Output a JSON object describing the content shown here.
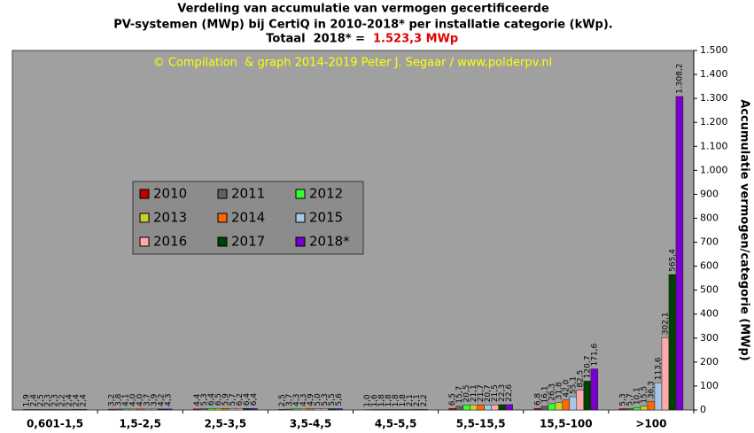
{
  "chart_data": {
    "type": "bar",
    "title": "Verdeling van accumulatie van vermogen gecertificeerde",
    "subtitle": "PV-systemen (MWp) bij CertiQ in 2010-2018* per installatie categorie (kWp).",
    "total_label": "Totaal  2018* =",
    "total_value": "1.523,3 MWp",
    "annotation": "© Compilation  & graph 2014-2019 Peter J. Segaar / www.polderpv.nl",
    "y_label": "Accumulatie vermogen/categorie (MWp)",
    "categories": [
      "0,601-1,5",
      "1,5-2,5",
      "2,5-3,5",
      "3,5-4,5",
      "4,5-5,5",
      "5,5-15,5",
      "15,5-100",
      ">100"
    ],
    "series": [
      {
        "name": "2010",
        "color": "#c00000",
        "values": [
          1.9,
          3.2,
          4.4,
          2.5,
          1.0,
          6.5,
          6.8,
          5.3
        ],
        "value_labels": [
          "1,9",
          "3,2",
          "4,4",
          "2,5",
          "1,0",
          "6,5",
          "6,8",
          "5,3"
        ]
      },
      {
        "name": "2011",
        "color": "#606060",
        "values": [
          2.4,
          3.8,
          5.3,
          3.7,
          1.6,
          15.7,
          16.1,
          5.7
        ],
        "value_labels": [
          "2,4",
          "3,8",
          "5,3",
          "3,7",
          "1,6",
          "15,7",
          "16,1",
          "5,7"
        ]
      },
      {
        "name": "2012",
        "color": "#33ff33",
        "values": [
          2.5,
          4.1,
          6.4,
          4.3,
          1.8,
          20.5,
          26.3,
          10.1
        ],
        "value_labels": [
          "2,5",
          "4,1",
          "6,4",
          "4,3",
          "1,8",
          "20,5",
          "26,3",
          "10,1"
        ]
      },
      {
        "name": "2013",
        "color": "#cccc33",
        "values": [
          2.3,
          4.0,
          6.5,
          4.3,
          1.8,
          21.1,
          31.8,
          15.5
        ],
        "value_labels": [
          "2,3",
          "4,0",
          "6,5",
          "4,3",
          "1,8",
          "21,1",
          "31,8",
          "15,5"
        ]
      },
      {
        "name": "2014",
        "color": "#ff6600",
        "values": [
          2.3,
          4.0,
          5.9,
          4.9,
          1.8,
          21.7,
          42.0,
          36.3
        ],
        "value_labels": [
          "2,3",
          "4,0",
          "5,9",
          "4,9",
          "1,8",
          "21,7",
          "42,0",
          "36,3"
        ]
      },
      {
        "name": "2015",
        "color": "#a6c8e8",
        "values": [
          2.2,
          3.7,
          5.7,
          5.0,
          1.8,
          20.7,
          55.1,
          113.6
        ],
        "value_labels": [
          "2,2",
          "3,7",
          "5,7",
          "5,0",
          "1,8",
          "20,7",
          "55,1",
          "113,6"
        ]
      },
      {
        "name": "2016",
        "color": "#ffaaaa",
        "values": [
          2.4,
          3.9,
          6.2,
          5.3,
          2.1,
          21.5,
          82.5,
          302.1
        ],
        "value_labels": [
          "2,4",
          "3,9",
          "6,2",
          "5,3",
          "2,1",
          "21,5",
          "82,5",
          "302,1"
        ]
      },
      {
        "name": "2017",
        "color": "#004000",
        "values": [
          2.4,
          4.2,
          6.4,
          5.5,
          2.1,
          22.3,
          120.7,
          565.4
        ],
        "value_labels": [
          "2,4",
          "4,2",
          "6,4",
          "5,5",
          "2,1",
          "22,3",
          "120,7",
          "565,4"
        ]
      },
      {
        "name": "2018*",
        "color": "#7700cc",
        "values": [
          2.4,
          4.3,
          6.4,
          5.6,
          2.2,
          22.6,
          171.6,
          1308.2
        ],
        "value_labels": [
          "2,4",
          "4,3",
          "6,4",
          "5,6",
          "2,2",
          "22,6",
          "171,6",
          "1.308,2"
        ]
      }
    ],
    "ylim": [
      0,
      1500
    ],
    "yticks": [
      0,
      100,
      200,
      300,
      400,
      500,
      600,
      700,
      800,
      900,
      {
        "value": 1000,
        "label": "1.000"
      },
      {
        "value": 1100,
        "label": "1.100"
      },
      {
        "value": 1200,
        "label": "1.200"
      },
      {
        "value": 1300,
        "label": "1.300"
      },
      {
        "value": 1400,
        "label": "1.400"
      },
      {
        "value": 1500,
        "label": "1.500"
      }
    ],
    "grid": false
  }
}
